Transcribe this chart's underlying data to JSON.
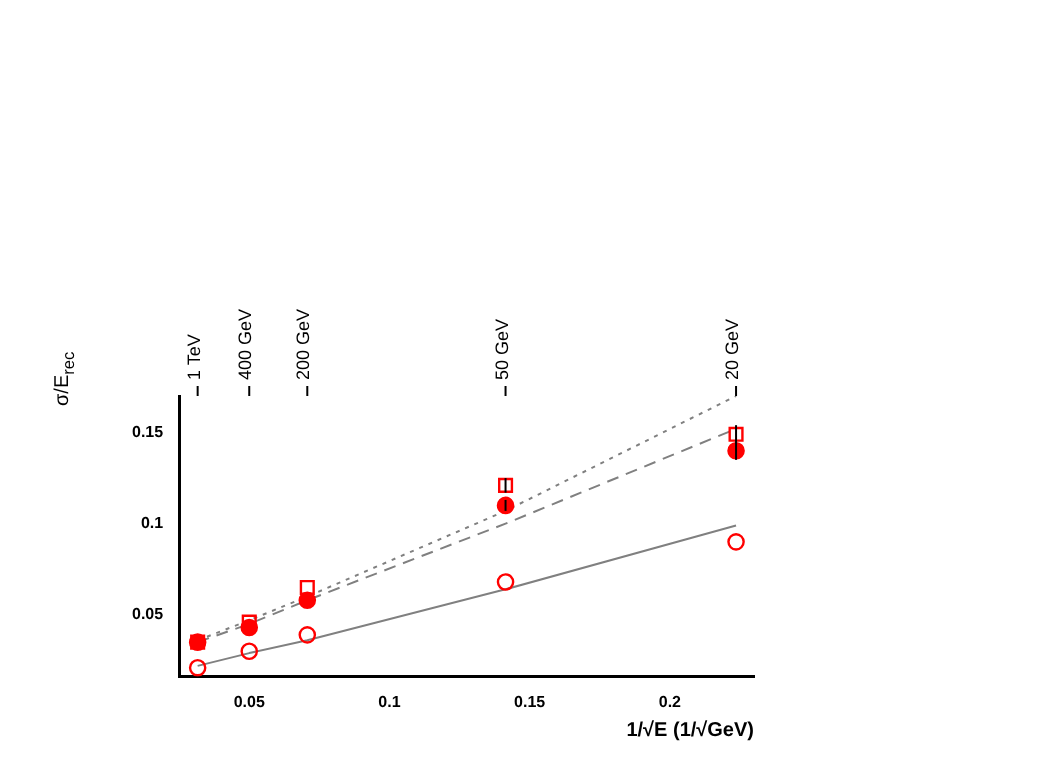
{
  "chart_data": {
    "type": "scatter",
    "xlabel": "1/√E (1/√GeV)",
    "ylabel": "σ/E$_{rec}$",
    "x": [
      0.0316,
      0.05,
      0.0707,
      0.1414,
      0.2236
    ],
    "series": [
      {
        "marker": "square",
        "color": "#ff0000",
        "values": [
          0.035,
          0.046,
          0.065,
          0.121,
          0.149
        ],
        "errors": [
          null,
          null,
          null,
          0.004,
          0.005
        ]
      },
      {
        "marker": "circle",
        "color": "#ff0000",
        "values": [
          0.035,
          0.043,
          0.058,
          0.11,
          0.14
        ],
        "errors": [
          null,
          null,
          null,
          0.003,
          0.005
        ]
      },
      {
        "marker": "circle",
        "color": "#ff0000",
        "values": [
          0.021,
          0.03,
          0.039,
          0.068,
          0.09
        ]
      },
      {
        "type": "line",
        "marker": "none",
        "line_style": "dotted",
        "color": "#808080",
        "x": [
          0.0316,
          0.05,
          0.0707,
          0.1414,
          0.2236
        ],
        "values": [
          0.036,
          0.047,
          0.06,
          0.107,
          0.17
        ]
      },
      {
        "type": "line",
        "marker": "none",
        "line_style": "dashed",
        "color": "#808080",
        "x": [
          0.0316,
          0.05,
          0.0707,
          0.1414,
          0.2236
        ],
        "values": [
          0.035,
          0.045,
          0.058,
          0.1,
          0.152
        ]
      },
      {
        "type": "line",
        "marker": "none",
        "line_style": "solid",
        "color": "#808080",
        "x": [
          0.0316,
          0.05,
          0.0707,
          0.1414,
          0.2236
        ],
        "values": [
          0.022,
          0.029,
          0.036,
          0.064,
          0.099
        ]
      }
    ],
    "xlim": [
      0.025,
      0.23
    ],
    "xticks": [
      0.05,
      0.1,
      0.15,
      0.2
    ],
    "ylim": [
      0.016,
      0.17
    ],
    "yticks": [
      0.05,
      0.1,
      0.15
    ],
    "annotations": [
      {
        "text": "1 TeV",
        "x": 0.0316
      },
      {
        "text": "400 GeV",
        "x": 0.05
      },
      {
        "text": "200 GeV",
        "x": 0.0707
      },
      {
        "text": "50 GeV",
        "x": 0.1414
      },
      {
        "text": "20 GeV",
        "x": 0.2236
      }
    ],
    "grid": false,
    "legend": false
  }
}
